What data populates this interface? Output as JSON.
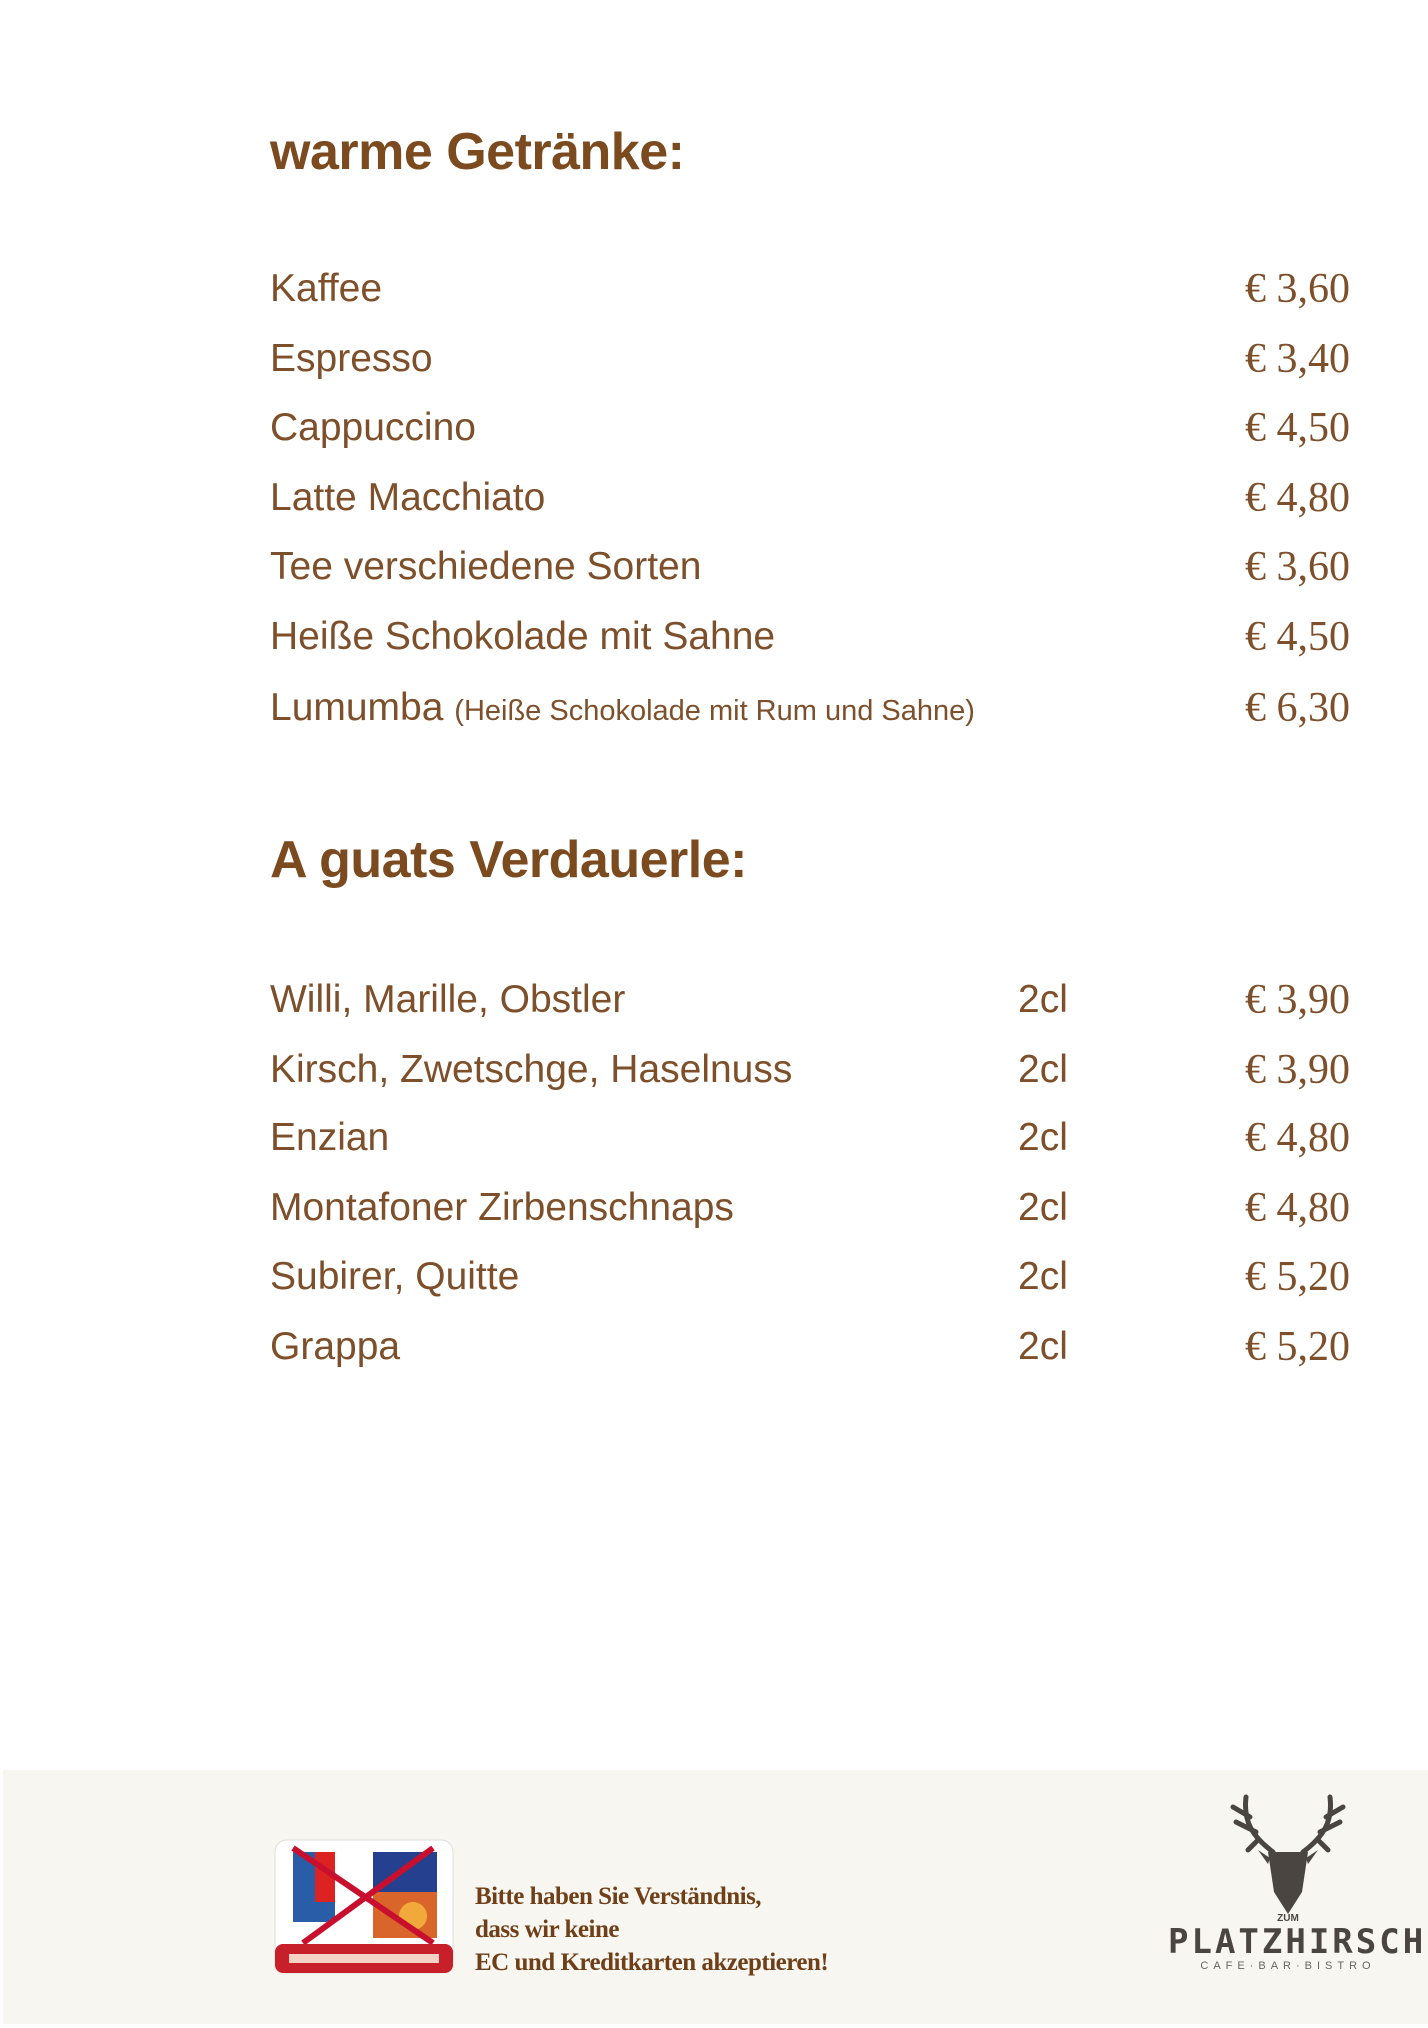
{
  "sections": [
    {
      "title": "warme Getränke:",
      "items": [
        {
          "name": "Kaffee",
          "price": "€ 3,60"
        },
        {
          "name": "Espresso",
          "price": "€ 3,40"
        },
        {
          "name": "Cappuccino",
          "price": "€ 4,50"
        },
        {
          "name": "Latte Macchiato",
          "price": "€ 4,80"
        },
        {
          "name": "Tee verschiedene Sorten",
          "price": "€ 3,60"
        },
        {
          "name": "Heiße Schokolade mit Sahne",
          "price": "€ 4,50"
        },
        {
          "name": "Lumumba",
          "note": "(Heiße Schokolade mit Rum und Sahne)",
          "price": "€ 6,30"
        }
      ]
    },
    {
      "title": "A guats Verdauerle:",
      "items": [
        {
          "name": "Willi, Marille, Obstler",
          "volume": "2cl",
          "price": "€ 3,90"
        },
        {
          "name": "Kirsch, Zwetschge, Haselnuss",
          "volume": "2cl",
          "price": "€ 3,90"
        },
        {
          "name": "Enzian",
          "volume": "2cl",
          "price": "€ 4,80"
        },
        {
          "name": "Montafoner Zirbenschnaps",
          "volume": "2cl",
          "price": "€ 4,80"
        },
        {
          "name": "Subirer, Quitte",
          "volume": "2cl",
          "price": "€ 5,20"
        },
        {
          "name": "Grappa",
          "volume": "2cl",
          "price": "€ 5,20"
        }
      ]
    }
  ],
  "footer": {
    "notice_lines": [
      "Bitte haben Sie Verständnis,",
      "dass wir keine",
      "EC und Kreditkarten akzeptieren!"
    ],
    "badge_icon": "no-card-payment-icon",
    "logo": {
      "small": "ZUM",
      "brand": "PLATZHIRSCH",
      "sub": "CAFE·BAR·BISTRO",
      "icon": "stag-head-icon"
    }
  },
  "colors": {
    "text": "#7d4f2a",
    "heading": "#7b4a1e",
    "footer_bg": "#f8f6f1",
    "notice": "#6e3f18"
  }
}
